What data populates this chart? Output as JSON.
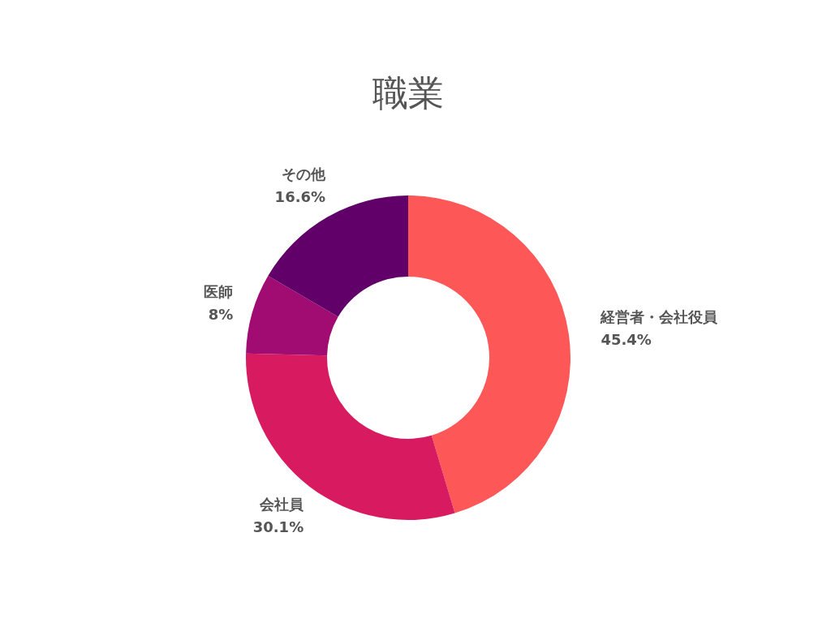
{
  "chart_data": {
    "type": "donut",
    "title": "職業",
    "categories": [
      "経営者・会社役員",
      "会社員",
      "医師",
      "その他"
    ],
    "values": [
      45.4,
      30.1,
      8,
      16.6
    ],
    "colors": [
      "#fe5757",
      "#d81b60",
      "#a10c72",
      "#600068"
    ],
    "value_labels": [
      "45.4%",
      "30.1%",
      "8%",
      "16.6%"
    ]
  }
}
